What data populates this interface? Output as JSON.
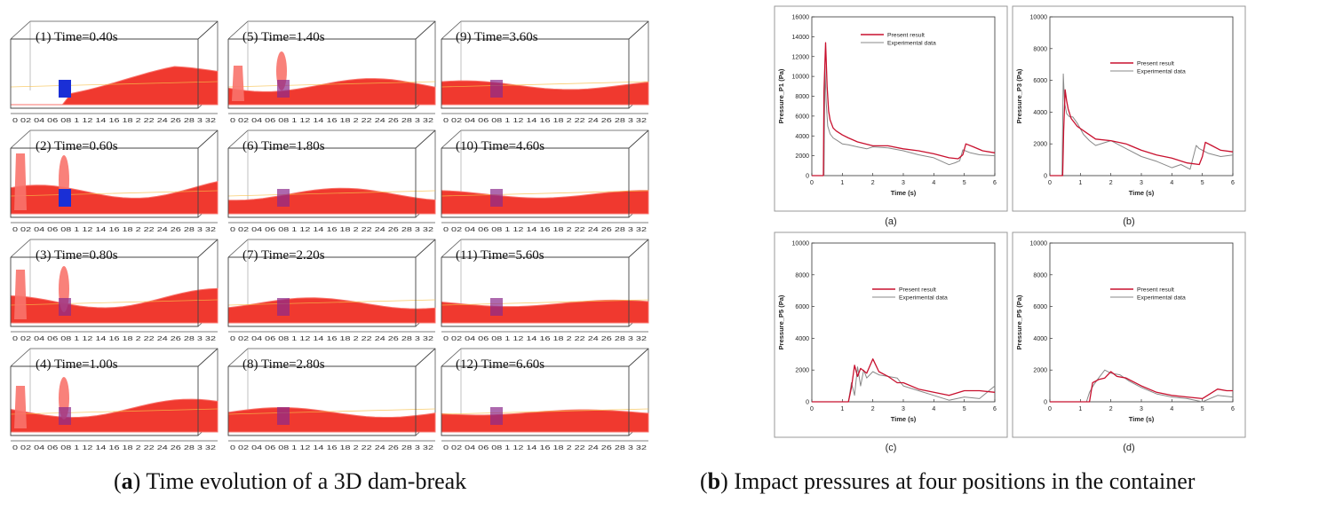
{
  "simulation": {
    "axis_ticks": [
      "0",
      "0.2",
      "0.4",
      "0.6",
      "0.8",
      "1",
      "1.2",
      "1.4",
      "1.6",
      "1.8",
      "2",
      "2.2",
      "2.4",
      "2.6",
      "2.8",
      "3",
      "3.2"
    ],
    "axis_tick_text": "0  02 04 06 08  1  12 14 16 18  2  22 24 26 28  3  32",
    "frames": [
      {
        "label": "(1)  Time=0.40s"
      },
      {
        "label": "(2) Time=0.60s"
      },
      {
        "label": "(3) Time=0.80s"
      },
      {
        "label": "(4) Time=1.00s"
      },
      {
        "label": "(5) Time=1.40s"
      },
      {
        "label": "(6) Time=1.80s"
      },
      {
        "label": "(7) Time=2.20s"
      },
      {
        "label": "(8) Time=2.80s"
      },
      {
        "label": "(9) Time=3.60s"
      },
      {
        "label": "(10) Time=4.60s"
      },
      {
        "label": "(11) Time=5.60s"
      },
      {
        "label": "(12) Time=6.60s"
      }
    ],
    "colors": {
      "water": "#f0392f",
      "water_light": "#f8736b",
      "obstacle": "#1a2fd6",
      "obstacle_submerged": "#8a2a8c"
    }
  },
  "captions": {
    "a_label": "a",
    "a_text": "Time evolution of a 3D dam-break",
    "b_label": "b",
    "b_text": "Impact pressures at four positions in the container"
  },
  "chart_data": [
    {
      "type": "line",
      "panel": "(a)",
      "xlabel": "Time (s)",
      "ylabel": "Pressure_P1 (Pa)",
      "xlim": [
        0,
        6
      ],
      "ylim": [
        0,
        16000
      ],
      "xticks": [
        0,
        1,
        2,
        3,
        4,
        5,
        6
      ],
      "yticks": [
        0,
        2000,
        4000,
        6000,
        8000,
        10000,
        12000,
        14000,
        16000
      ],
      "legend_position": "top-center",
      "series": [
        {
          "name": "Present result",
          "color": "#c8102e",
          "x": [
            0,
            0.38,
            0.4,
            0.45,
            0.5,
            0.55,
            0.6,
            0.7,
            0.8,
            1.0,
            1.2,
            1.5,
            2.0,
            2.5,
            3.0,
            3.5,
            4.0,
            4.5,
            4.8,
            4.95,
            5.05,
            5.3,
            5.6,
            6.0
          ],
          "y": [
            0,
            0,
            8500,
            13400,
            9000,
            6500,
            5600,
            4800,
            4500,
            4100,
            3800,
            3400,
            3000,
            3000,
            2700,
            2500,
            2200,
            1800,
            1700,
            2100,
            3200,
            2900,
            2500,
            2300
          ]
        },
        {
          "name": "Experimental data",
          "color": "#888888",
          "x": [
            0,
            0.4,
            0.43,
            0.47,
            0.52,
            0.6,
            0.7,
            0.85,
            1.0,
            1.2,
            1.5,
            1.8,
            2.0,
            2.5,
            3.0,
            3.5,
            4.0,
            4.5,
            4.7,
            4.85,
            4.95,
            5.2,
            5.5,
            6.0
          ],
          "y": [
            0,
            0,
            11000,
            7500,
            5000,
            4200,
            3800,
            3500,
            3200,
            3100,
            2900,
            2700,
            2900,
            2800,
            2500,
            2100,
            1800,
            1100,
            1300,
            1500,
            2600,
            2300,
            2100,
            2000
          ]
        }
      ]
    },
    {
      "type": "line",
      "panel": "(b)",
      "xlabel": "Time (s)",
      "ylabel": "Pressure_P3 (Pa)",
      "xlim": [
        0,
        6
      ],
      "ylim": [
        0,
        10000
      ],
      "xticks": [
        0,
        1,
        2,
        3,
        4,
        5,
        6
      ],
      "yticks": [
        0,
        2000,
        4000,
        6000,
        8000,
        10000
      ],
      "legend_position": "top-right",
      "series": [
        {
          "name": "Present result",
          "color": "#c8102e",
          "x": [
            0,
            0.42,
            0.45,
            0.5,
            0.55,
            0.6,
            0.7,
            0.9,
            1.2,
            1.5,
            2.0,
            2.5,
            3.0,
            3.5,
            4.0,
            4.5,
            4.9,
            5.0,
            5.1,
            5.3,
            5.6,
            6.0
          ],
          "y": [
            0,
            0,
            2800,
            5400,
            4700,
            4200,
            3600,
            3100,
            2700,
            2300,
            2200,
            2000,
            1600,
            1300,
            1100,
            800,
            700,
            1200,
            2100,
            1900,
            1600,
            1500
          ]
        },
        {
          "name": "Experimental data",
          "color": "#888888",
          "x": [
            0,
            0.4,
            0.44,
            0.48,
            0.55,
            0.65,
            0.75,
            0.9,
            1.1,
            1.3,
            1.5,
            2.0,
            2.5,
            3.0,
            3.5,
            4.0,
            4.3,
            4.6,
            4.8,
            4.9,
            5.2,
            5.6,
            6.0
          ],
          "y": [
            0,
            0,
            6400,
            4600,
            3900,
            3700,
            3700,
            3300,
            2600,
            2200,
            1900,
            2200,
            1700,
            1200,
            900,
            500,
            700,
            400,
            1900,
            1700,
            1400,
            1200,
            1300
          ]
        }
      ]
    },
    {
      "type": "line",
      "panel": "(c)",
      "xlabel": "Time (s)",
      "ylabel": "Pressure_P5 (Pa)",
      "xlim": [
        0,
        6
      ],
      "ylim": [
        0,
        10000
      ],
      "xticks": [
        0,
        1,
        2,
        3,
        4,
        5,
        6
      ],
      "yticks": [
        0,
        2000,
        4000,
        6000,
        8000,
        10000
      ],
      "legend_position": "top-right",
      "series": [
        {
          "name": "Present result",
          "color": "#c8102e",
          "x": [
            0,
            1.2,
            1.3,
            1.4,
            1.5,
            1.6,
            1.8,
            2.0,
            2.1,
            2.2,
            2.5,
            2.8,
            3.0,
            3.5,
            4.0,
            4.5,
            5.0,
            5.5,
            6.0
          ],
          "y": [
            0,
            0,
            900,
            2300,
            1600,
            2100,
            1800,
            2700,
            2300,
            1900,
            1600,
            1200,
            1200,
            800,
            600,
            400,
            700,
            700,
            600
          ]
        },
        {
          "name": "Experimental data",
          "color": "#888888",
          "x": [
            0,
            1.2,
            1.3,
            1.4,
            1.5,
            1.6,
            1.7,
            1.8,
            2.0,
            2.2,
            2.5,
            2.8,
            3.0,
            3.5,
            4.0,
            4.5,
            5.0,
            5.5,
            6.0
          ],
          "y": [
            0,
            0,
            1200,
            400,
            2200,
            1000,
            2000,
            1500,
            1900,
            1700,
            1600,
            1500,
            1000,
            700,
            400,
            100,
            300,
            200,
            1000
          ]
        }
      ]
    },
    {
      "type": "line",
      "panel": "(d)",
      "xlabel": "Time (s)",
      "ylabel": "Pressure_P5 (Pa)",
      "xlim": [
        0,
        6
      ],
      "ylim": [
        0,
        10000
      ],
      "xticks": [
        0,
        1,
        2,
        3,
        4,
        5,
        6
      ],
      "yticks": [
        0,
        2000,
        4000,
        6000,
        8000,
        10000
      ],
      "legend_position": "top-right",
      "series": [
        {
          "name": "Present result",
          "color": "#c8102e",
          "x": [
            0,
            1.3,
            1.4,
            1.6,
            1.8,
            2.0,
            2.2,
            2.5,
            3.0,
            3.5,
            4.0,
            4.5,
            5.0,
            5.5,
            5.8,
            6.0
          ],
          "y": [
            0,
            0,
            1200,
            1400,
            1500,
            1900,
            1600,
            1500,
            1000,
            600,
            400,
            300,
            200,
            800,
            700,
            700
          ]
        },
        {
          "name": "Experimental data",
          "color": "#888888",
          "x": [
            0,
            1.2,
            1.3,
            1.45,
            1.6,
            1.8,
            2.0,
            2.3,
            2.6,
            3.0,
            3.5,
            4.0,
            4.5,
            5.0,
            5.5,
            6.0
          ],
          "y": [
            0,
            0,
            600,
            1100,
            1500,
            2000,
            1800,
            1700,
            1300,
            900,
            500,
            300,
            200,
            0,
            400,
            300
          ]
        }
      ]
    }
  ]
}
